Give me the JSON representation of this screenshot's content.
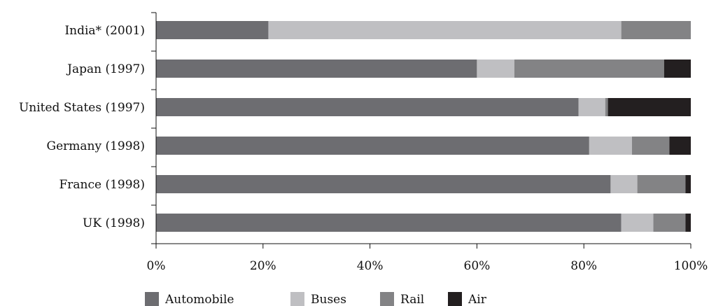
{
  "chart_data": {
    "type": "bar",
    "orientation": "horizontal",
    "stacked": true,
    "categories": [
      "India* (2001)",
      "Japan (1997)",
      "United States (1997)",
      "Germany (1998)",
      "France (1998)",
      "UK (1998)"
    ],
    "series": [
      {
        "name": "Automobile",
        "color": "#6d6d71",
        "values": [
          21,
          60,
          79,
          81,
          85,
          87
        ]
      },
      {
        "name": "Buses",
        "color": "#bfbfc2",
        "values": [
          66,
          7,
          5,
          8,
          5,
          6
        ]
      },
      {
        "name": "Rail",
        "color": "#838385",
        "values": [
          13,
          28,
          0.5,
          7,
          9,
          6
        ]
      },
      {
        "name": "Air",
        "color": "#231f20",
        "values": [
          0,
          5,
          15.5,
          4,
          1,
          1
        ]
      }
    ],
    "xticks": [
      "0%",
      "20%",
      "40%",
      "60%",
      "80%",
      "100%"
    ],
    "xlim": [
      0,
      100
    ],
    "title": "",
    "xlabel": "",
    "ylabel": "",
    "grid": false,
    "legend": {
      "position": "bottom"
    }
  }
}
